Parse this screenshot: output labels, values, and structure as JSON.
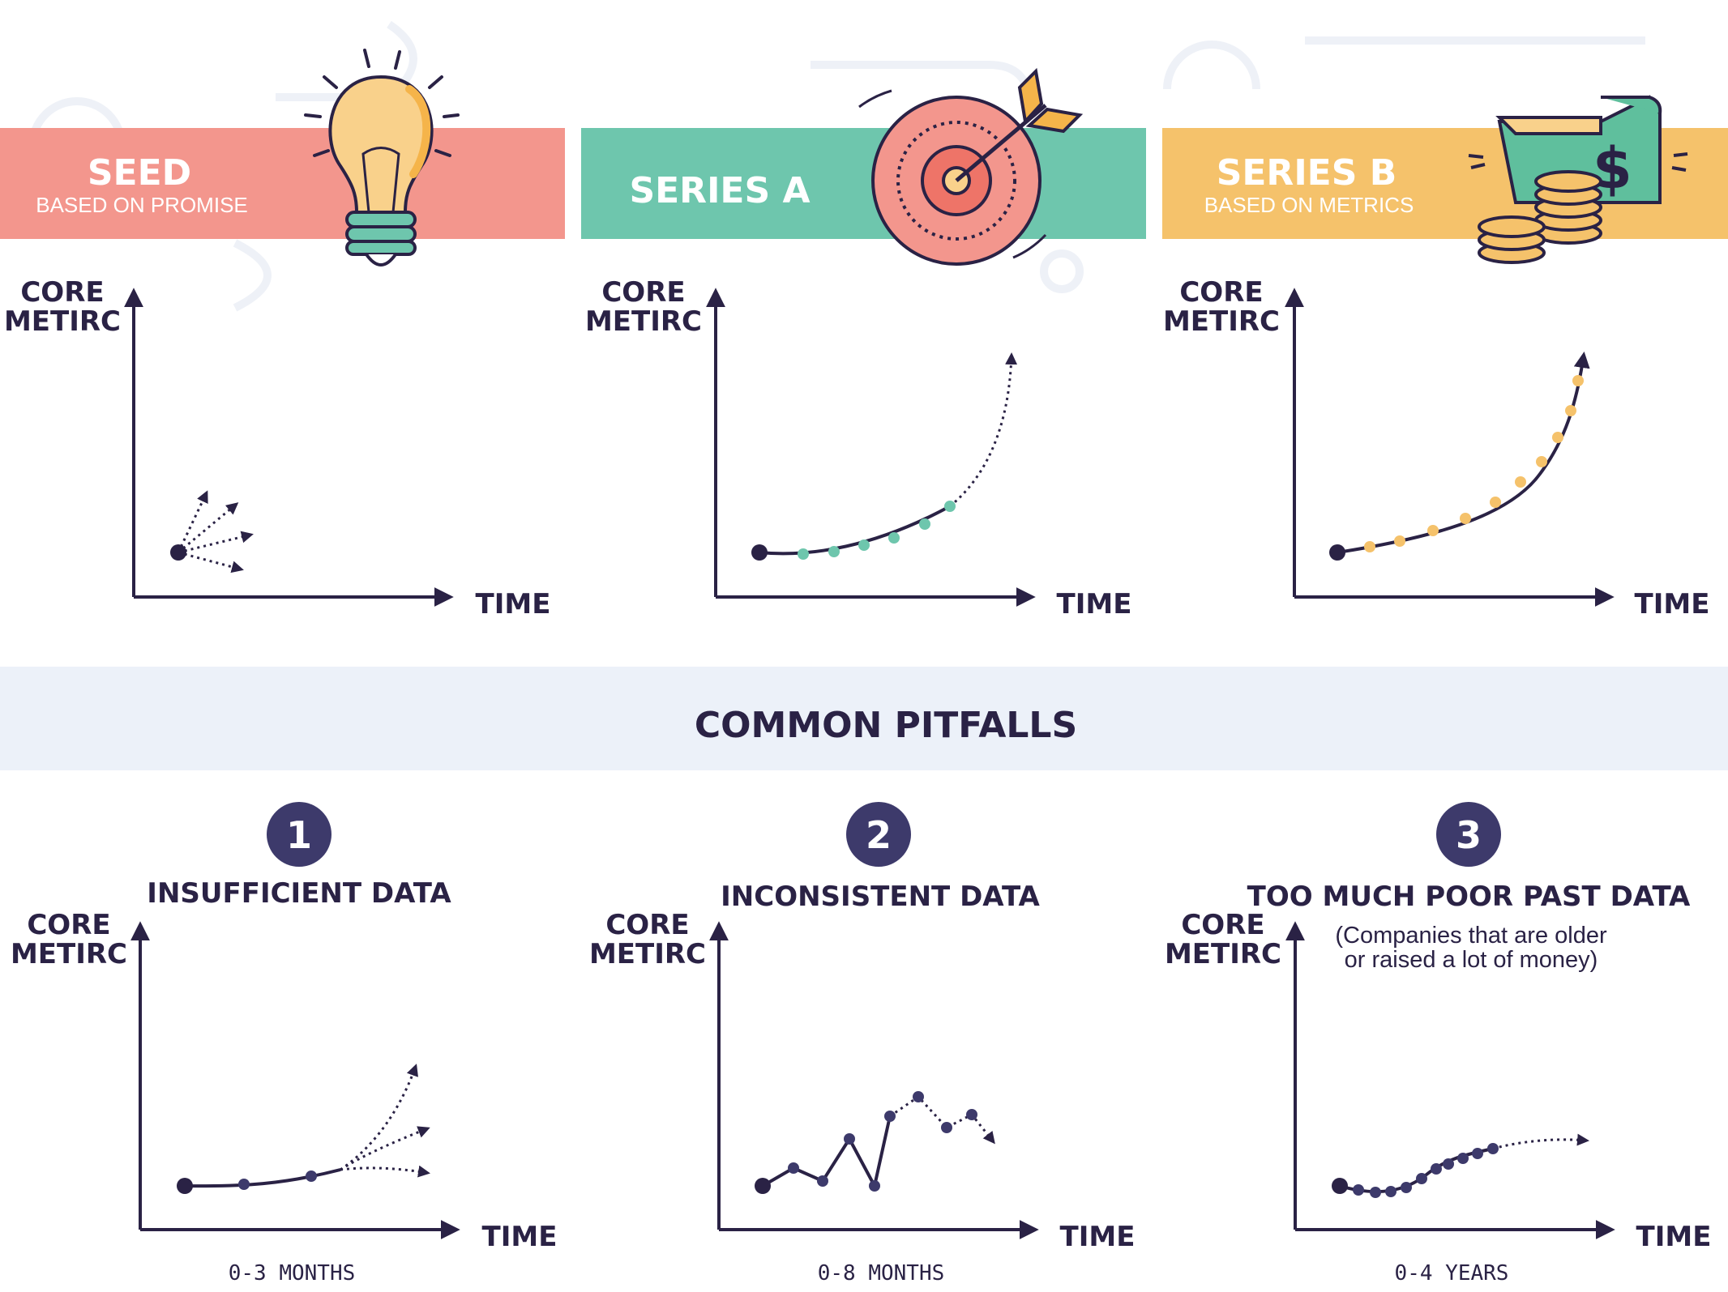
{
  "stages": [
    {
      "title": "SEED",
      "subtitle": "BASED ON PROMISE",
      "color": "#f3968d",
      "icon": "lightbulb-icon",
      "y_label_1": "CORE",
      "y_label_2": "METIRC",
      "x_label": "TIME"
    },
    {
      "title": "SERIES A",
      "subtitle": "",
      "color": "#6ec6ad",
      "icon": "target-icon",
      "y_label_1": "CORE",
      "y_label_2": "METIRC",
      "x_label": "TIME"
    },
    {
      "title": "SERIES B",
      "subtitle": "BASED ON METRICS",
      "color": "#f5c26b",
      "icon": "money-coins-icon",
      "y_label_1": "CORE",
      "y_label_2": "METIRC",
      "x_label": "TIME"
    }
  ],
  "pitfalls_band": {
    "title": "COMMON PITFALLS",
    "color": "#ecf1f9"
  },
  "pitfalls": [
    {
      "number": "1",
      "title": "INSUFFICIENT DATA",
      "note_1": "",
      "note_2": "",
      "y_label_1": "CORE",
      "y_label_2": "METIRC",
      "x_label": "TIME",
      "range": "0-3 MONTHS"
    },
    {
      "number": "2",
      "title": "INCONSISTENT DATA",
      "note_1": "",
      "note_2": "",
      "y_label_1": "CORE",
      "y_label_2": "METIRC",
      "x_label": "TIME",
      "range": "0-8 MONTHS"
    },
    {
      "number": "3",
      "title": "TOO MUCH POOR PAST DATA",
      "note_1": "(Companies that are older",
      "note_2": "or raised a lot of money)",
      "y_label_1": "CORE",
      "y_label_2": "METIRC",
      "x_label": "TIME",
      "range": "0-4 YEARS"
    }
  ],
  "colors": {
    "ink": "#2a2245",
    "badge": "#3d3a6b",
    "seed": "#f3968d",
    "series_a": "#6ec6ad",
    "series_b": "#f5c26b",
    "pitfall_dot": "#3d3a6b"
  }
}
